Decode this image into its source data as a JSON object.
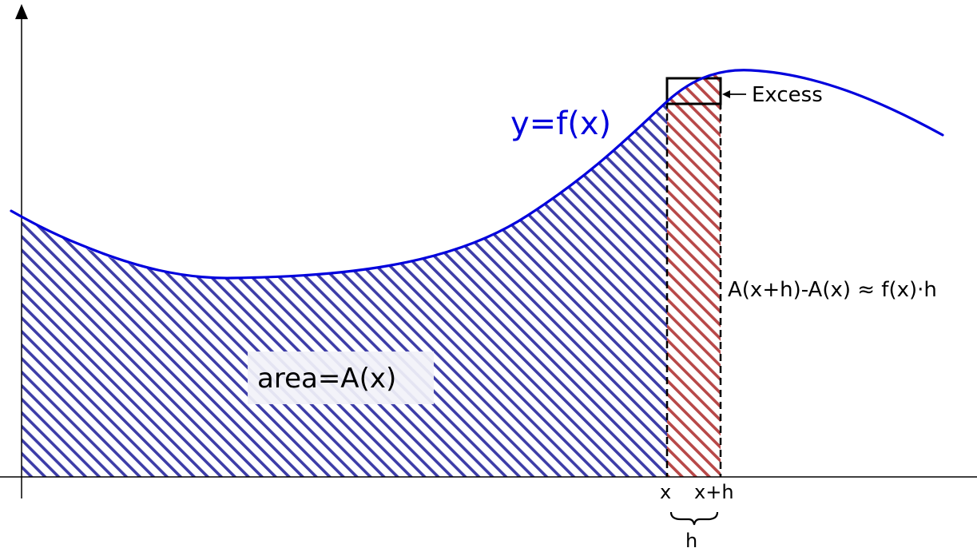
{
  "labels": {
    "curve": "y=f(x)",
    "area": "area=A(x)",
    "excess": "Excess",
    "difference": "A(x+h)-A(x) ≈ f(x)·h",
    "x": "x",
    "x_plus_h": "x+h",
    "h": "h"
  },
  "colors": {
    "curve": "#0000dd",
    "area_hatch": "#3d3da8",
    "strip_hatch": "#b84848",
    "axes": "#000000",
    "area_label_bg": "#f2f2f8"
  }
}
